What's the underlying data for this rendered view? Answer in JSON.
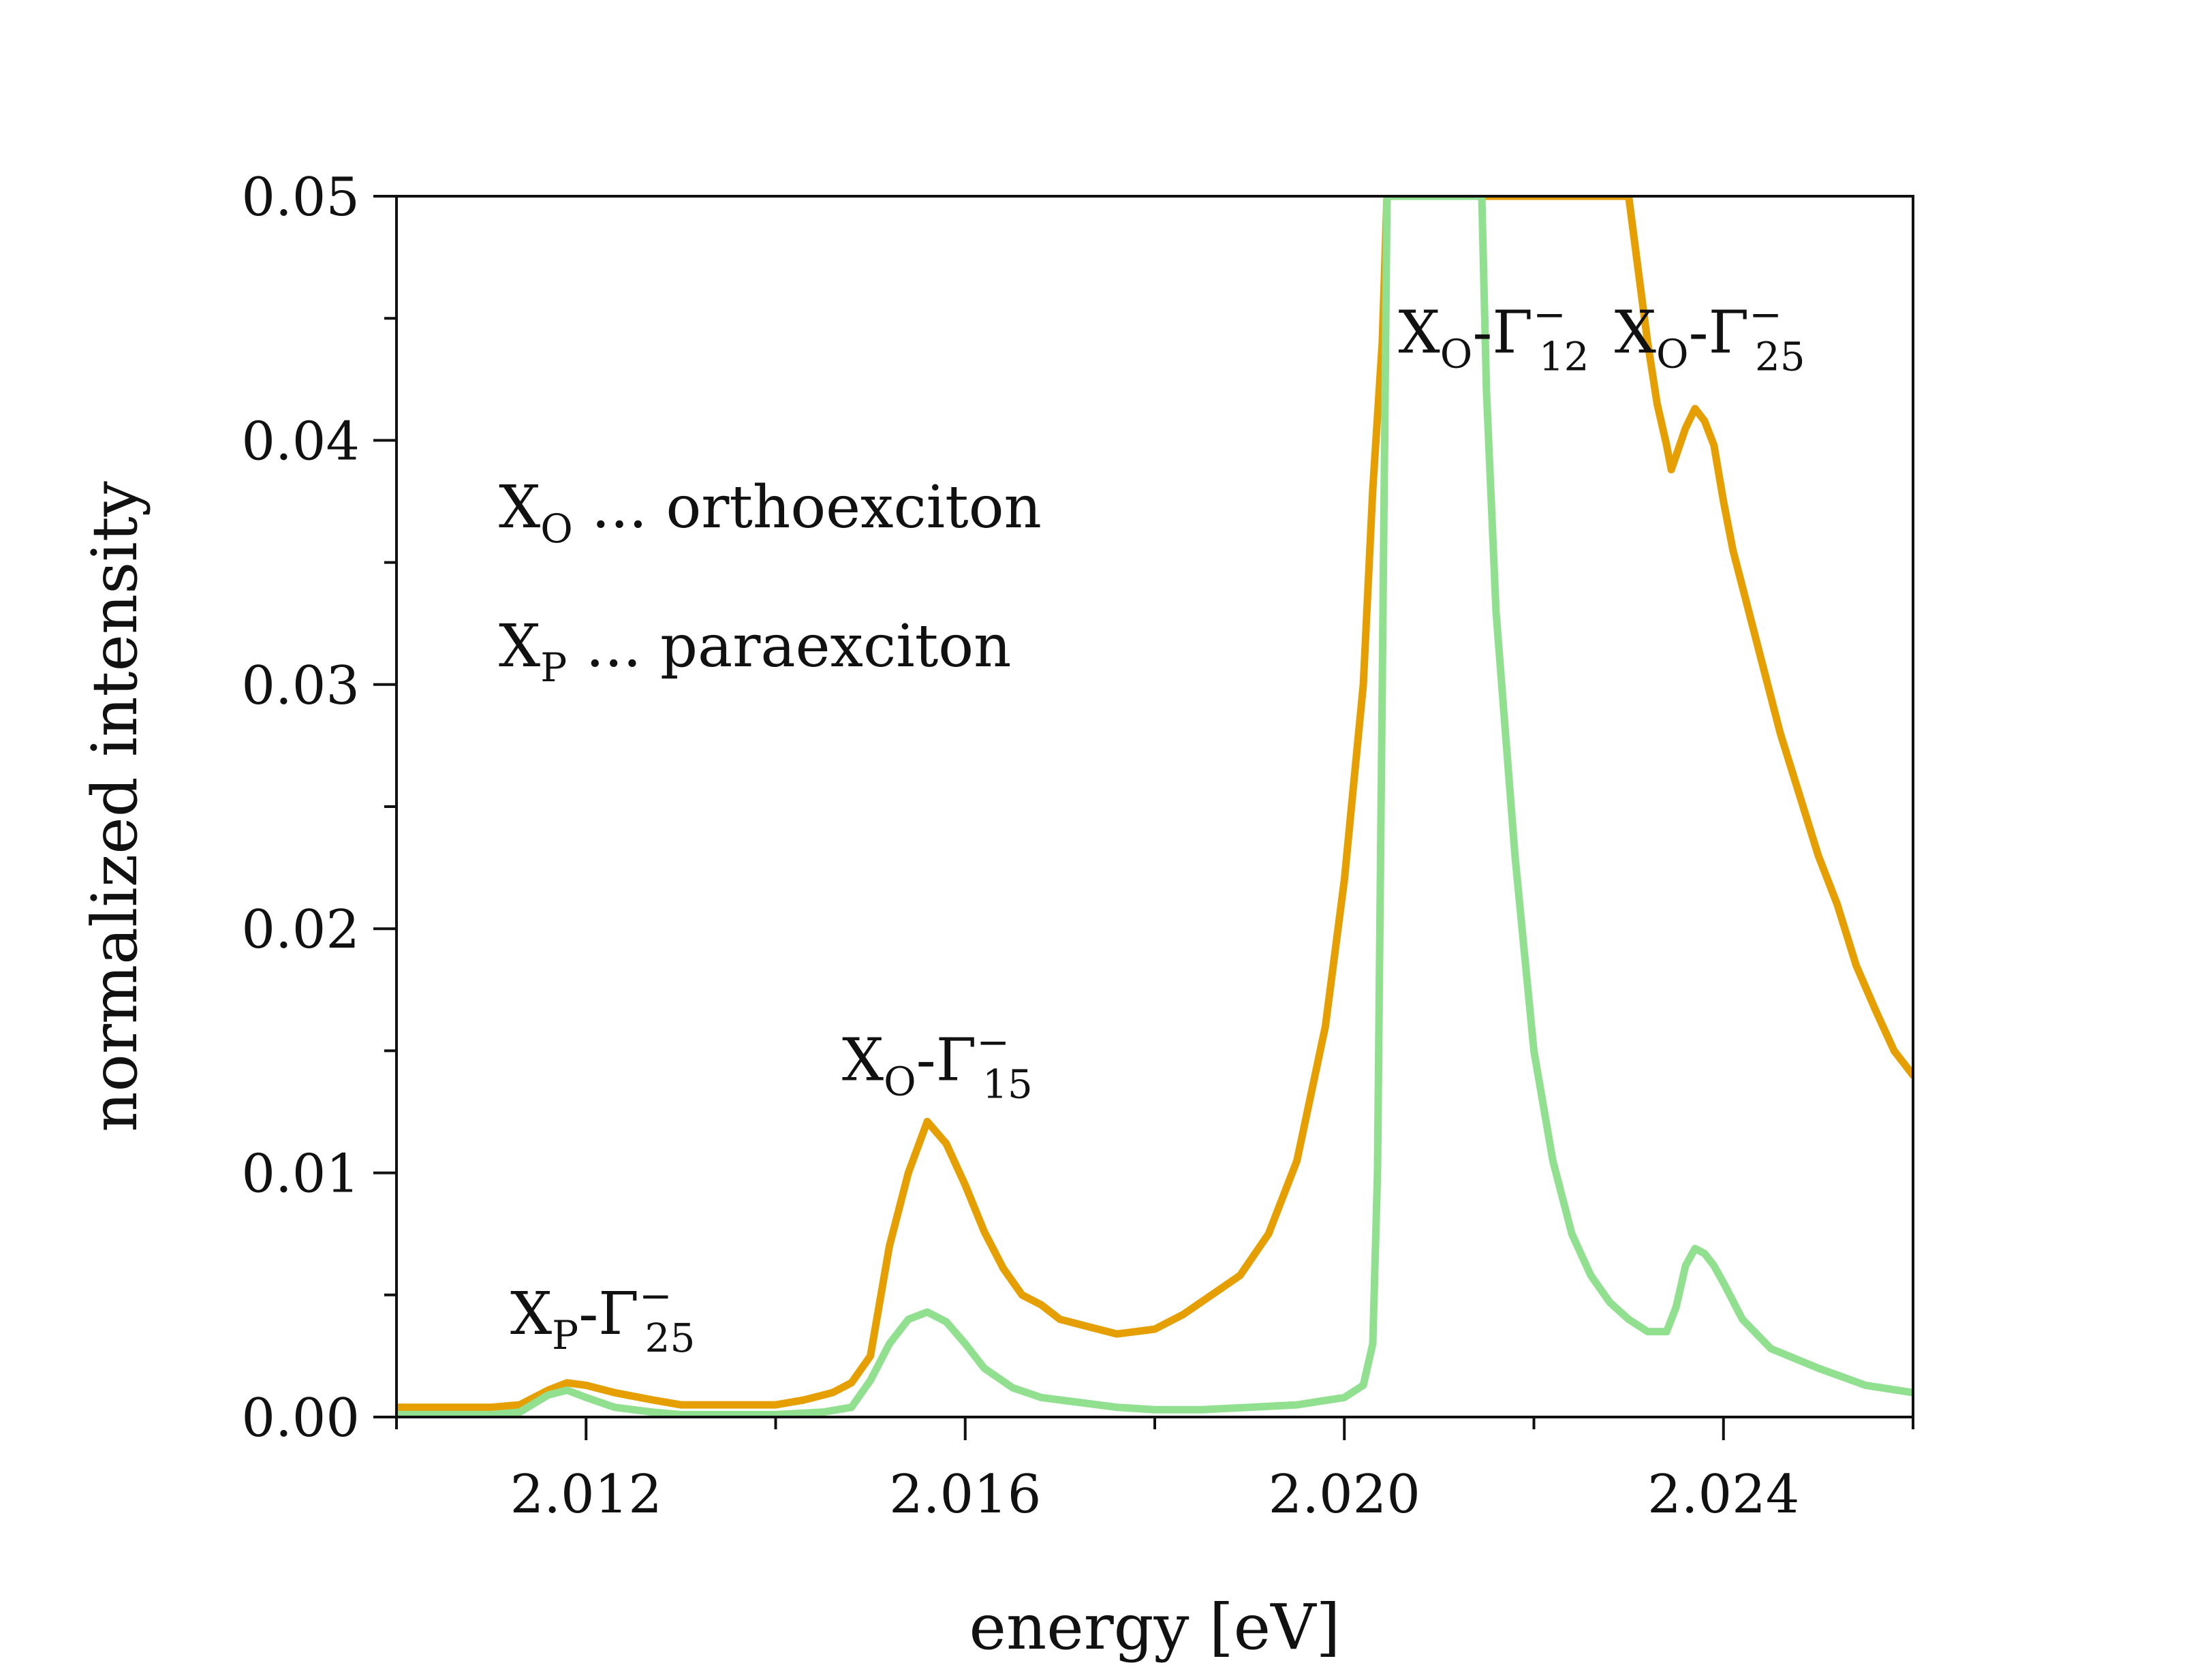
{
  "chart_data": {
    "type": "line",
    "title": "",
    "xlabel": "energy [eV]",
    "ylabel": "normalized intensity",
    "xlim": [
      2.01,
      2.026
    ],
    "ylim": [
      0.0,
      0.05
    ],
    "grid": false,
    "x_ticks": [
      2.012,
      2.016,
      2.02,
      2.024
    ],
    "x_tick_labels": [
      "2.012",
      "2.016",
      "2.020",
      "2.024"
    ],
    "y_ticks": [
      0.0,
      0.01,
      0.02,
      0.03,
      0.04,
      0.05
    ],
    "y_tick_labels": [
      "0.00",
      "0.01",
      "0.02",
      "0.03",
      "0.04",
      "0.05"
    ],
    "x_minor_tick_step": 0.002,
    "y_minor_tick_step": 0.005,
    "colors": {
      "orange": "#E69F00",
      "green": "#90E090",
      "axis": "#111111"
    },
    "series": [
      {
        "name": "orange spectrum",
        "color": "#E69F00",
        "x": [
          2.01,
          2.0105,
          2.011,
          2.0113,
          2.0116,
          2.0118,
          2.012,
          2.0123,
          2.0127,
          2.013,
          2.0135,
          2.014,
          2.0143,
          2.0146,
          2.0148,
          2.015,
          2.0152,
          2.0154,
          2.0156,
          2.0158,
          2.016,
          2.0162,
          2.0164,
          2.0166,
          2.0168,
          2.017,
          2.0173,
          2.0176,
          2.018,
          2.0183,
          2.0186,
          2.0189,
          2.0192,
          2.0195,
          2.0198,
          2.02,
          2.0202,
          2.0203,
          2.0204,
          2.02045,
          2.023,
          2.0231,
          2.0232,
          2.0233,
          2.0234,
          2.02345,
          2.0236,
          2.0237,
          2.0238,
          2.0239,
          2.024,
          2.0241,
          2.0242,
          2.0244,
          2.0246,
          2.0248,
          2.025,
          2.0252,
          2.0254,
          2.0256,
          2.0258,
          2.026
        ],
        "y": [
          0.0004,
          0.0004,
          0.0004,
          0.0005,
          0.0011,
          0.0014,
          0.0013,
          0.001,
          0.0007,
          0.0005,
          0.0005,
          0.0005,
          0.0007,
          0.001,
          0.0014,
          0.0025,
          0.007,
          0.01,
          0.0121,
          0.0112,
          0.0095,
          0.0076,
          0.0061,
          0.005,
          0.0046,
          0.004,
          0.0037,
          0.0034,
          0.0036,
          0.0042,
          0.005,
          0.0058,
          0.0075,
          0.0105,
          0.016,
          0.022,
          0.03,
          0.038,
          0.044,
          0.05,
          0.05,
          0.047,
          0.044,
          0.0415,
          0.0398,
          0.0388,
          0.0405,
          0.0413,
          0.0408,
          0.0398,
          0.0375,
          0.0355,
          0.034,
          0.031,
          0.028,
          0.0255,
          0.023,
          0.021,
          0.0185,
          0.0167,
          0.015,
          0.014
        ]
      },
      {
        "name": "green spectrum",
        "color": "#90E090",
        "x": [
          2.01,
          2.0105,
          2.011,
          2.0113,
          2.0116,
          2.0118,
          2.012,
          2.0123,
          2.0127,
          2.013,
          2.0135,
          2.014,
          2.0145,
          2.0148,
          2.015,
          2.0152,
          2.0154,
          2.0156,
          2.0158,
          2.016,
          2.0162,
          2.0165,
          2.0168,
          2.0172,
          2.0176,
          2.018,
          2.0185,
          2.019,
          2.0195,
          2.02,
          2.0202,
          2.0203,
          2.02035,
          2.0204,
          2.02045,
          2.02145,
          2.0215,
          2.0216,
          2.0218,
          2.022,
          2.0222,
          2.0224,
          2.0226,
          2.0228,
          2.023,
          2.0232,
          2.0234,
          2.0235,
          2.0236,
          2.0237,
          2.0238,
          2.0239,
          2.024,
          2.0242,
          2.0245,
          2.025,
          2.0255,
          2.026
        ],
        "y": [
          0.0001,
          0.0001,
          0.0001,
          0.0002,
          0.0009,
          0.0011,
          0.0008,
          0.0004,
          0.0002,
          0.0001,
          0.0001,
          0.0001,
          0.0002,
          0.0004,
          0.0015,
          0.003,
          0.004,
          0.0043,
          0.0039,
          0.003,
          0.002,
          0.0012,
          0.0008,
          0.0006,
          0.0004,
          0.0003,
          0.0003,
          0.0004,
          0.0005,
          0.0008,
          0.0013,
          0.003,
          0.01,
          0.03,
          0.05,
          0.05,
          0.042,
          0.033,
          0.023,
          0.015,
          0.0105,
          0.0075,
          0.0058,
          0.0047,
          0.004,
          0.0035,
          0.0035,
          0.0045,
          0.0062,
          0.0069,
          0.0067,
          0.0062,
          0.0055,
          0.004,
          0.0028,
          0.002,
          0.0013,
          0.001
        ]
      }
    ],
    "annotations": [
      {
        "base": "X",
        "sub": "P",
        "rest": "-Γ",
        "sup": "−",
        "sub2": "25",
        "x": 2.0112,
        "y": 0.0034
      },
      {
        "base": "X",
        "sub": "O",
        "rest": "-Γ",
        "sup": "−",
        "sub2": "15",
        "x": 2.0147,
        "y": 0.0138
      },
      {
        "base": "X",
        "sub": "O",
        "rest": "-Γ",
        "sup": "−",
        "sub2": "12",
        "x": 2.02057,
        "y": 0.0436
      },
      {
        "base": "X",
        "sub": "O",
        "rest": "-Γ",
        "sup": "−",
        "sub2": "25",
        "x": 2.02285,
        "y": 0.0436
      }
    ],
    "legend": [
      {
        "base": "X",
        "sub": "O",
        "text": " ... orthoexciton"
      },
      {
        "base": "X",
        "sub": "P",
        "text": " ... paraexciton"
      }
    ],
    "legend_position": "top-left"
  }
}
